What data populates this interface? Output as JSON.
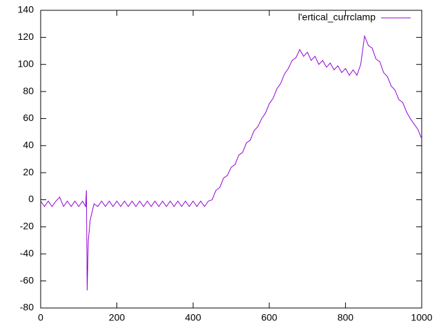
{
  "chart_data": {
    "type": "line",
    "x": [
      0,
      10,
      20,
      30,
      40,
      50,
      60,
      70,
      80,
      90,
      100,
      110,
      118,
      120,
      122,
      125,
      130,
      140,
      150,
      160,
      170,
      180,
      190,
      200,
      210,
      220,
      230,
      240,
      250,
      260,
      270,
      280,
      290,
      300,
      310,
      320,
      330,
      340,
      350,
      360,
      370,
      380,
      390,
      400,
      410,
      420,
      430,
      440,
      450,
      460,
      470,
      480,
      490,
      500,
      510,
      520,
      530,
      540,
      550,
      560,
      570,
      580,
      590,
      600,
      610,
      620,
      630,
      640,
      650,
      660,
      670,
      680,
      690,
      700,
      710,
      720,
      730,
      740,
      750,
      760,
      770,
      780,
      790,
      800,
      810,
      820,
      830,
      840,
      850,
      860,
      870,
      880,
      890,
      900,
      910,
      920,
      930,
      940,
      950,
      960,
      970,
      980,
      990,
      1000
    ],
    "series": [
      {
        "name": "l'ertical_currclamp",
        "color": "#9400d3",
        "values": [
          -1,
          -5,
          -1,
          -5,
          -1,
          2,
          -5,
          -1,
          -5,
          -1,
          -5,
          -1,
          -5,
          7,
          -67,
          -30,
          -15,
          -3,
          -5,
          -1,
          -5,
          -1,
          -5,
          -1,
          -5,
          -1,
          -5,
          -1,
          -5,
          -1,
          -5,
          -1,
          -5,
          -1,
          -5,
          -1,
          -5,
          -1,
          -5,
          -1,
          -5,
          -1,
          -5,
          -1,
          -5,
          -1,
          -5,
          -1,
          0,
          7,
          9,
          16,
          18,
          24,
          26,
          33,
          35,
          42,
          44,
          51,
          54,
          60,
          64,
          71,
          75,
          82,
          86,
          93,
          97,
          103,
          105,
          111,
          106,
          109,
          103,
          106,
          100,
          103,
          98,
          101,
          96,
          99,
          94,
          97,
          92,
          96,
          92,
          100,
          121,
          114,
          112,
          104,
          102,
          94,
          91,
          84,
          81,
          74,
          72,
          65,
          60,
          56,
          52,
          45
        ]
      }
    ],
    "xlim": [
      0,
      1000
    ],
    "xticks": [
      0,
      200,
      400,
      600,
      800,
      1000
    ],
    "ylim": [
      -80,
      140
    ],
    "yticks": [
      -80,
      -60,
      -40,
      -20,
      0,
      20,
      40,
      60,
      80,
      100,
      120,
      140
    ],
    "legend": "top-right"
  }
}
